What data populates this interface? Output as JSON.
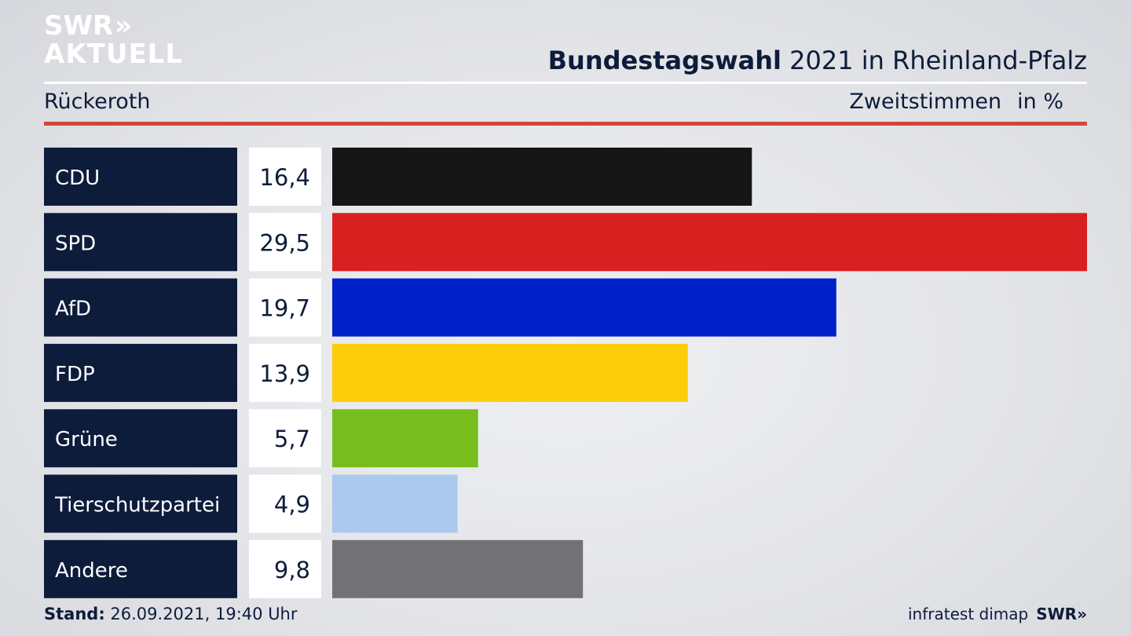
{
  "logo": {
    "line1": "SWR",
    "chevrons": "»",
    "line2": "AKTUELL"
  },
  "header": {
    "title_bold": "Bundestagswahl",
    "title_rest": "2021 in Rheinland-Pfalz",
    "location": "Rückeroth",
    "measure": "Zweitstimmen",
    "unit": "in %"
  },
  "chart_data": {
    "type": "bar",
    "orientation": "horizontal",
    "title": "Bundestagswahl 2021 in Rheinland-Pfalz",
    "subtitle": "Rückeroth",
    "ylabel": "Zweitstimmen in %",
    "grid": false,
    "categories": [
      "CDU",
      "SPD",
      "AfD",
      "FDP",
      "Grüne",
      "Tierschutzpartei",
      "Andere"
    ],
    "values": [
      16.4,
      29.5,
      19.7,
      13.9,
      5.7,
      4.9,
      9.8
    ],
    "value_labels": [
      "16,4",
      "29,5",
      "19,7",
      "13,9",
      "5,7",
      "4,9",
      "9,8"
    ],
    "colors": [
      "#151515",
      "#d82020",
      "#0021c8",
      "#fecd0a",
      "#78bd1e",
      "#abc8ef",
      "#727274"
    ],
    "xlim": [
      0,
      29.5
    ]
  },
  "footer": {
    "stand_label": "Stand:",
    "stand_value": "26.09.2021, 19:40 Uhr",
    "source": "infratest dimap",
    "brand": "SWR»"
  }
}
